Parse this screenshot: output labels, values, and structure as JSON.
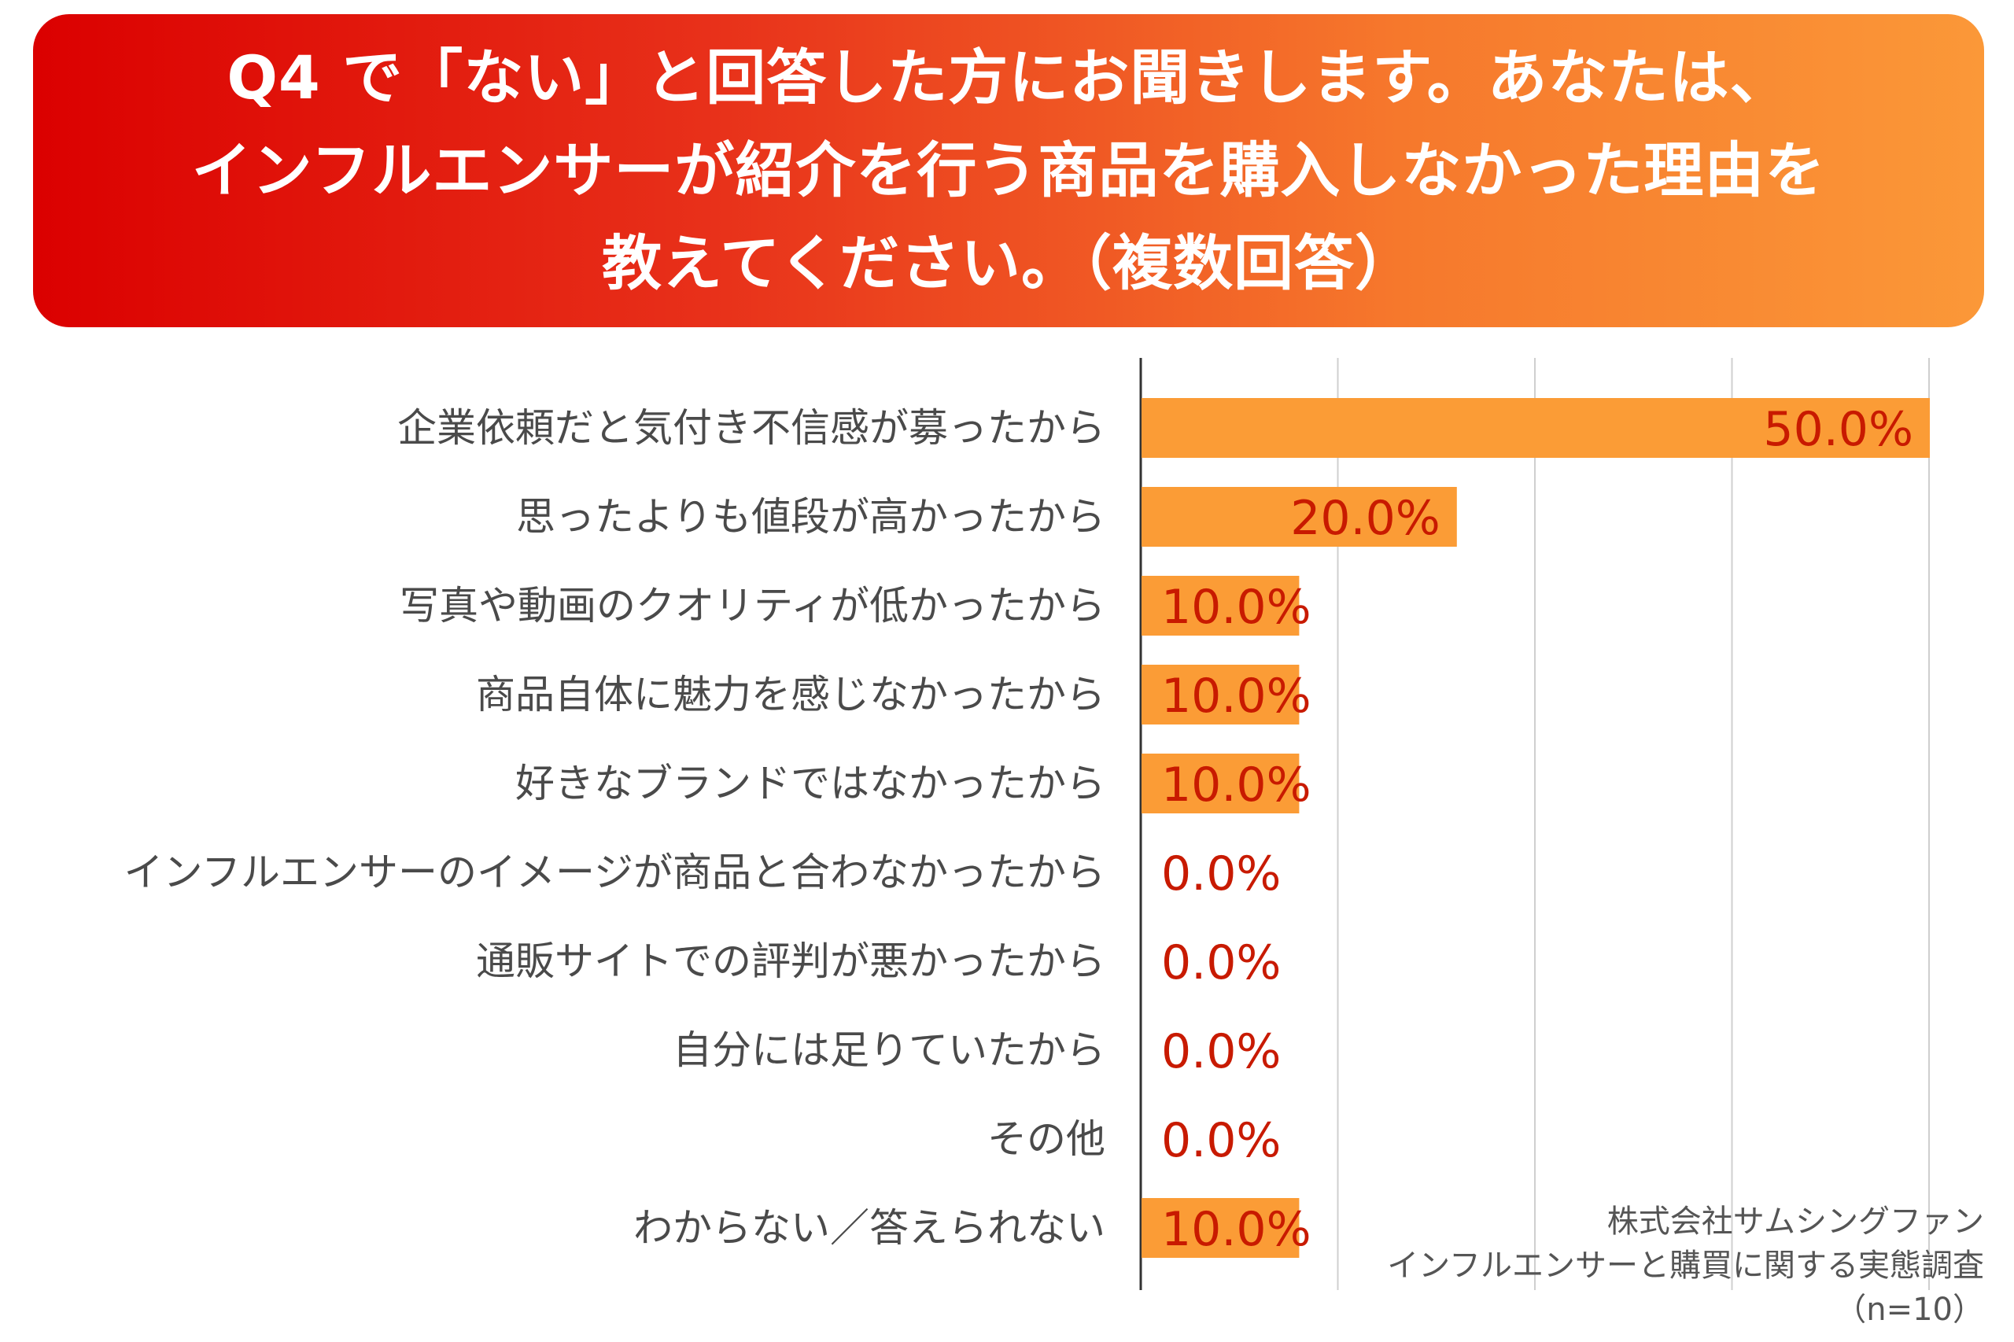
{
  "title": "Q4 で「ない」と回答した方にお聞きします。あなたは、\nインフルエンサーが紹介を行う商品を購入しなかった理由を\n教えてください。（複数回答）",
  "chart_data": {
    "type": "bar",
    "orientation": "horizontal",
    "categories": [
      "企業依頼だと気付き不信感が募ったから",
      "思ったよりも値段が高かったから",
      "写真や動画のクオリティが低かったから",
      "商品自体に魅力を感じなかったから",
      "好きなブランドではなかったから",
      "インフルエンサーのイメージが商品と合わなかったから",
      "通販サイトでの評判が悪かったから",
      "自分には足りていたから",
      "その他",
      "わからない／答えられない"
    ],
    "values": [
      50.0,
      20.0,
      10.0,
      10.0,
      10.0,
      0.0,
      0.0,
      0.0,
      0.0,
      10.0
    ],
    "value_labels": [
      "50.0%",
      "20.0%",
      "10.0%",
      "10.0%",
      "10.0%",
      "0.0%",
      "0.0%",
      "0.0%",
      "0.0%",
      "10.0%"
    ],
    "xlim": [
      0,
      50
    ],
    "gridlines_at": [
      0,
      12.5,
      25,
      37.5,
      50
    ],
    "grid": true,
    "bar_color": "#fb9c36",
    "value_label_color": "#c81a00"
  },
  "source": {
    "line1": "株式会社サムシングファン",
    "line2": "インフルエンサーと購買に関する実態調査",
    "line3": "（n=10）"
  },
  "colors": {
    "banner_start": "#db0000",
    "banner_end": "#fb9838",
    "bar": "#fb9c36",
    "value_text": "#c81a00",
    "category_text": "#4a4a4a"
  }
}
